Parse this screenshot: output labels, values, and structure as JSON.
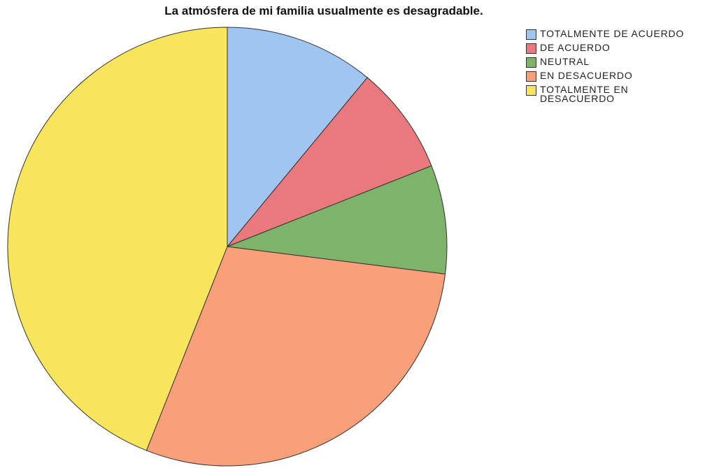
{
  "chart_data": {
    "type": "pie",
    "title": "La atmósfera de mi familia usualmente es desagradable.",
    "categories": [
      "TOTALMENTE DE ACUERDO",
      "DE ACUERDO",
      "NEUTRAL",
      "EN DESACUERDO",
      "TOTALMENTE EN DESACUERDO"
    ],
    "values": [
      11,
      8,
      8,
      29,
      44
    ],
    "colors": [
      "#9fc5f0",
      "#e9797c",
      "#7db46a",
      "#f9a07b",
      "#f8e55c"
    ]
  }
}
